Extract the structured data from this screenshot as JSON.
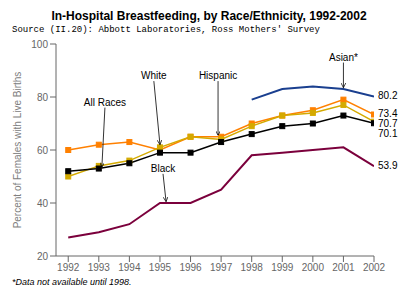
{
  "chart_data": {
    "type": "line",
    "title": "In-Hospital Breastfeeding, by Race/Ethnicity, 1992-2002",
    "subtitle": "Source (II.20): Abbott Laboratories, Ross Mothers' Survey",
    "footnote": "*Data not available until 1998.",
    "ylabel": "Percent of Females with Live Births",
    "x": [
      1992,
      1993,
      1994,
      1995,
      1996,
      1997,
      1998,
      1999,
      2000,
      2001,
      2002
    ],
    "xlim": [
      1991.6,
      2002.0
    ],
    "xticks": [
      1992,
      1993,
      1994,
      1995,
      1996,
      1997,
      1998,
      1999,
      2000,
      2001,
      2002
    ],
    "ylim": [
      20,
      100
    ],
    "yticks": [
      20,
      40,
      60,
      80,
      100
    ],
    "series": [
      {
        "name": "Hispanic",
        "color": "#FF8000",
        "marker": "square",
        "values": [
          60,
          62,
          63,
          60,
          65,
          65,
          70,
          73,
          75,
          79,
          73.4
        ]
      },
      {
        "name": "White",
        "color": "#D4AA00",
        "marker": "square",
        "values": [
          50,
          54,
          56,
          61,
          65,
          64,
          69,
          73,
          74,
          77,
          70.7
        ]
      },
      {
        "name": "All Races",
        "color": "#000000",
        "marker": "square",
        "values": [
          52,
          53,
          55,
          59,
          59,
          63,
          66,
          69,
          70,
          73,
          70.1
        ]
      },
      {
        "name": "Black",
        "color": "#7B003C",
        "marker": "none",
        "values": [
          27,
          29,
          32,
          40,
          40,
          45,
          58,
          59,
          60,
          61,
          53.9
        ]
      },
      {
        "name": "Asian*",
        "color": "#1A3F8F",
        "marker": "none",
        "values": [
          null,
          null,
          null,
          null,
          null,
          null,
          79,
          83,
          84,
          83,
          80.2
        ]
      }
    ],
    "annotations": [
      {
        "text": "All Races",
        "x": 1993.2,
        "y": 76,
        "arrow_x": 1993.1,
        "arrow_y": 53.5
      },
      {
        "text": "White",
        "x": 1994.8,
        "y": 86,
        "arrow_x": 1995.0,
        "arrow_y": 62
      },
      {
        "text": "Hispanic",
        "x": 1996.9,
        "y": 86,
        "arrow_x": 1996.9,
        "arrow_y": 65.5
      },
      {
        "text": "Black",
        "x": 1995.1,
        "y": 51,
        "arrow_x": 1995.2,
        "arrow_y": 40.5
      },
      {
        "text": "Asian*",
        "x": 2001.0,
        "y": 93,
        "arrow_x": 2001.0,
        "arrow_y": 83.5
      }
    ],
    "end_labels": [
      80.2,
      73.4,
      70.7,
      70.1,
      53.9
    ]
  }
}
